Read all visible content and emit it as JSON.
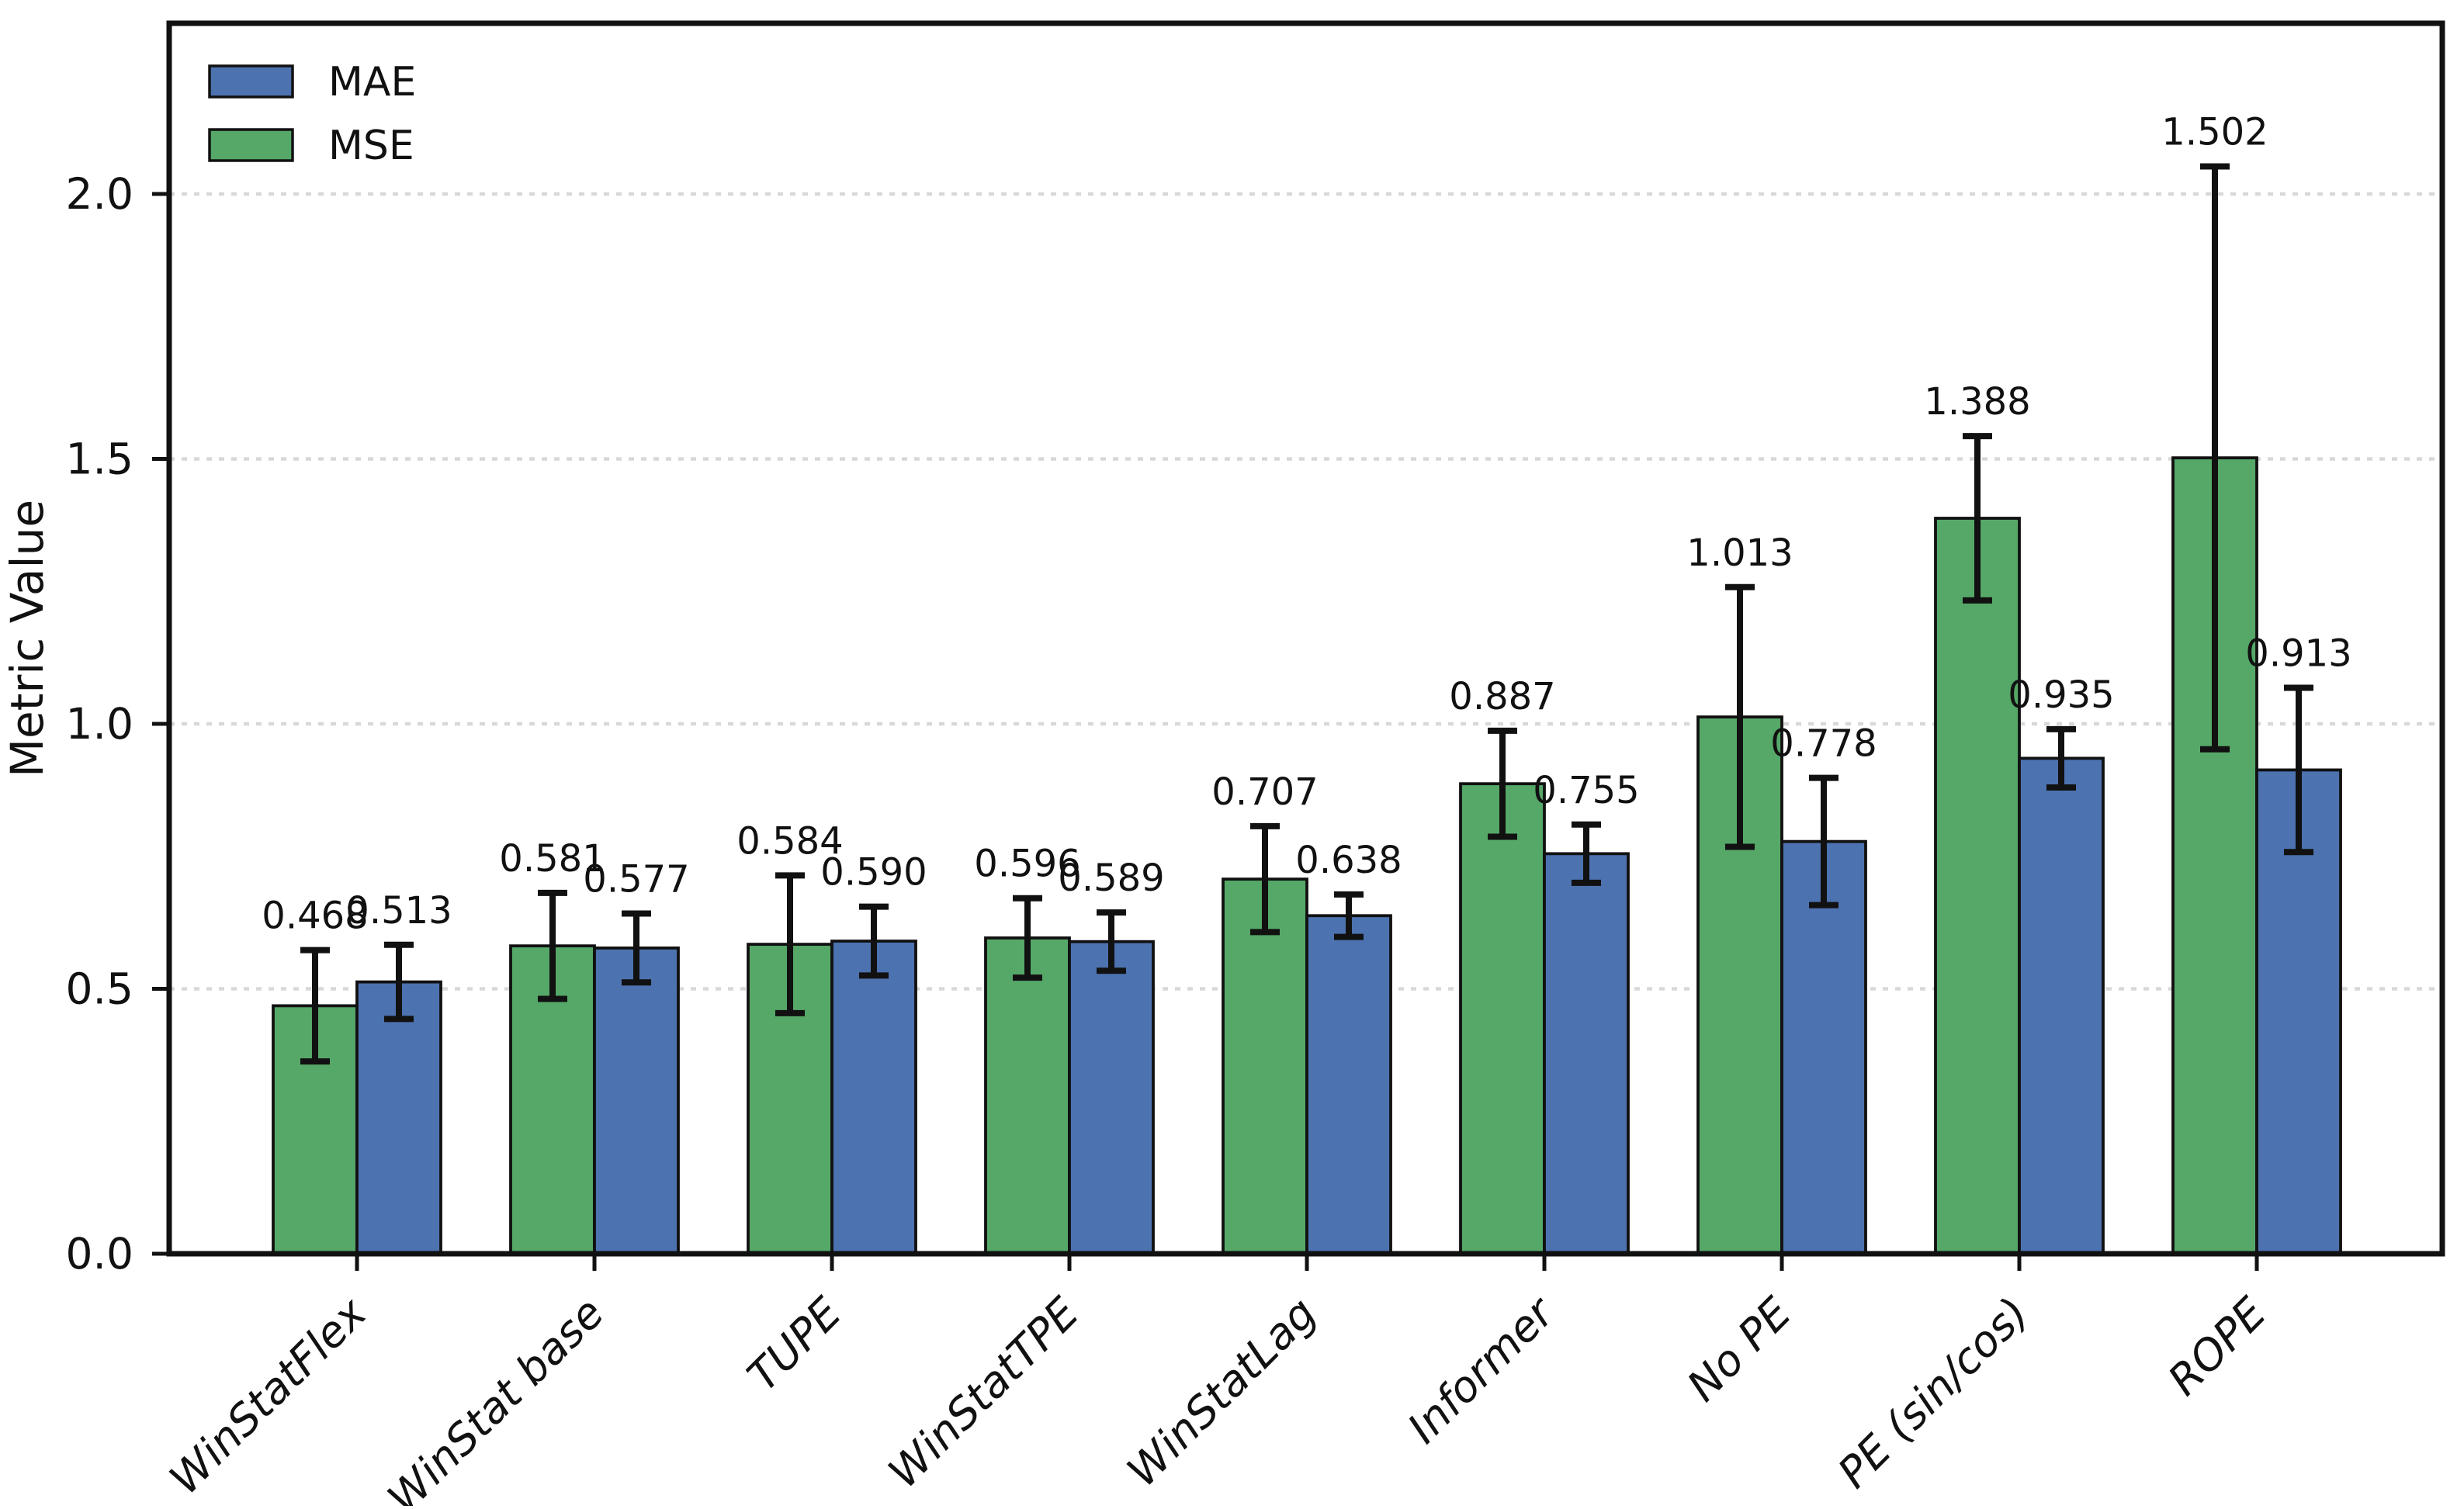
{
  "chart_data": {
    "type": "bar",
    "title": "",
    "xlabel": "",
    "ylabel": "Metric Value",
    "categories": [
      "WinStatFlex",
      "WinStat base",
      "TUPE",
      "WinStatTPE",
      "WinStatLag",
      "Informer",
      "No PE",
      "PE (sin/cos)",
      "ROPE"
    ],
    "bar_order": [
      "MSE",
      "MAE"
    ],
    "series": [
      {
        "name": "MSE",
        "color": "#55a868",
        "values": [
          0.468,
          0.581,
          0.584,
          0.596,
          0.707,
          0.887,
          1.013,
          1.388,
          1.502
        ],
        "errors": [
          0.105,
          0.1,
          0.13,
          0.075,
          0.1,
          0.1,
          0.245,
          0.155,
          0.55
        ],
        "labels": [
          "0.468",
          "0.581",
          "0.584",
          "0.596",
          "0.707",
          "0.887",
          "1.013",
          "1.388",
          "1.502"
        ]
      },
      {
        "name": "MAE",
        "color": "#4c72b0",
        "values": [
          0.513,
          0.577,
          0.59,
          0.589,
          0.638,
          0.755,
          0.778,
          0.935,
          0.913
        ],
        "errors": [
          0.07,
          0.065,
          0.065,
          0.055,
          0.04,
          0.055,
          0.12,
          0.055,
          0.155
        ],
        "labels": [
          "0.513",
          "0.577",
          "0.590",
          "0.589",
          "0.638",
          "0.755",
          "0.778",
          "0.935",
          "0.913"
        ]
      }
    ],
    "legend": {
      "position": "upper left",
      "entries": [
        {
          "label": "MAE",
          "color": "#4c72b0"
        },
        {
          "label": "MSE",
          "color": "#55a868"
        }
      ]
    },
    "y_ticks": [
      "0.0",
      "0.5",
      "1.0",
      "1.5",
      "2.0"
    ],
    "ylim": [
      0,
      2.33
    ],
    "grid": "horizontal-dotted",
    "grid_color": "#d8d8d8",
    "bar_edge_color": "#111111",
    "error_bar_color": "#111111"
  }
}
